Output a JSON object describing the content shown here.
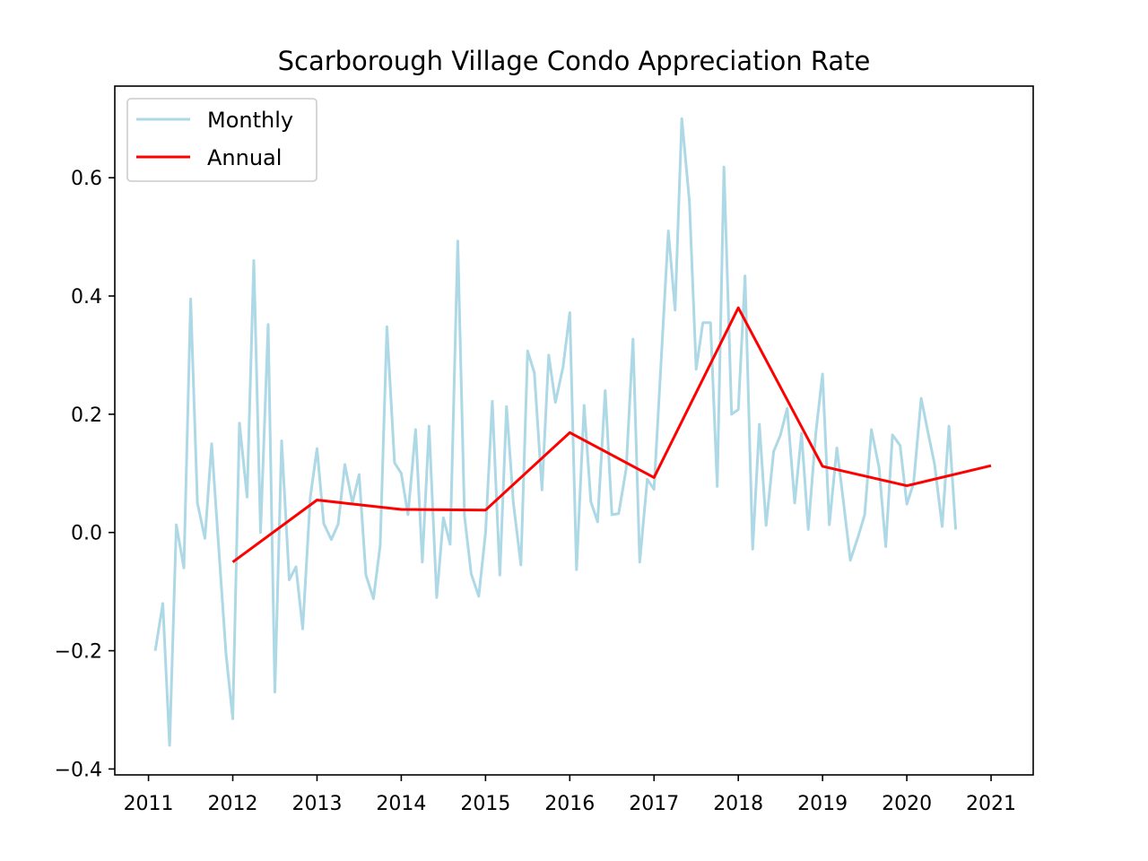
{
  "chart_data": {
    "type": "line",
    "title": "Scarborough Village Condo Appreciation Rate",
    "xlabel": "",
    "ylabel": "",
    "xlim": [
      2010.6,
      2021.5
    ],
    "ylim": [
      -0.41,
      0.755
    ],
    "x_ticks": [
      2011,
      2012,
      2013,
      2014,
      2015,
      2016,
      2017,
      2018,
      2019,
      2020,
      2021
    ],
    "x_tick_labels": [
      "2011",
      "2012",
      "2013",
      "2014",
      "2015",
      "2016",
      "2017",
      "2018",
      "2019",
      "2020",
      "2021"
    ],
    "y_ticks": [
      -0.4,
      -0.2,
      0.0,
      0.2,
      0.4,
      0.6
    ],
    "y_tick_labels": [
      "−0.4",
      "−0.2",
      "0.0",
      "0.2",
      "0.4",
      "0.6"
    ],
    "grid": false,
    "legend": {
      "position": "top-left",
      "entries": [
        "Monthly",
        "Annual"
      ]
    },
    "series": [
      {
        "name": "Monthly",
        "color": "#add8e6",
        "x": [
          2011.08,
          2011.17,
          2011.25,
          2011.33,
          2011.42,
          2011.5,
          2011.58,
          2011.67,
          2011.75,
          2011.83,
          2011.92,
          2012.0,
          2012.08,
          2012.17,
          2012.25,
          2012.33,
          2012.42,
          2012.5,
          2012.58,
          2012.67,
          2012.75,
          2012.83,
          2012.92,
          2013.0,
          2013.08,
          2013.17,
          2013.25,
          2013.33,
          2013.42,
          2013.5,
          2013.58,
          2013.67,
          2013.75,
          2013.83,
          2013.92,
          2014.0,
          2014.08,
          2014.17,
          2014.25,
          2014.33,
          2014.42,
          2014.5,
          2014.58,
          2014.67,
          2014.75,
          2014.83,
          2014.92,
          2015.0,
          2015.08,
          2015.17,
          2015.25,
          2015.33,
          2015.42,
          2015.5,
          2015.58,
          2015.67,
          2015.75,
          2015.83,
          2015.92,
          2016.0,
          2016.08,
          2016.17,
          2016.25,
          2016.33,
          2016.42,
          2016.5,
          2016.58,
          2016.67,
          2016.75,
          2016.83,
          2016.92,
          2017.0,
          2017.08,
          2017.17,
          2017.25,
          2017.33,
          2017.42,
          2017.5,
          2017.58,
          2017.67,
          2017.75,
          2017.83,
          2017.92,
          2018.0,
          2018.08,
          2018.17,
          2018.25,
          2018.33,
          2018.42,
          2018.5,
          2018.58,
          2018.67,
          2018.75,
          2018.83,
          2018.92,
          2019.0,
          2019.08,
          2019.17,
          2019.25,
          2019.33,
          2019.42,
          2019.5,
          2019.58,
          2019.67,
          2019.75,
          2019.83,
          2019.92,
          2020.0,
          2020.08,
          2020.17,
          2020.25,
          2020.33,
          2020.42,
          2020.5,
          2020.58
        ],
        "values": [
          -0.2,
          -0.12,
          -0.36,
          0.013,
          -0.06,
          0.395,
          0.05,
          -0.01,
          0.15,
          -0.02,
          -0.205,
          -0.315,
          0.185,
          0.06,
          0.46,
          0.0,
          0.352,
          -0.27,
          0.155,
          -0.08,
          -0.058,
          -0.163,
          0.06,
          0.142,
          0.015,
          -0.012,
          0.014,
          0.115,
          0.05,
          0.098,
          -0.072,
          -0.112,
          -0.022,
          0.348,
          0.118,
          0.1,
          0.03,
          0.174,
          -0.05,
          0.18,
          -0.11,
          0.025,
          -0.02,
          0.493,
          0.028,
          -0.07,
          -0.108,
          0.0,
          0.222,
          -0.072,
          0.213,
          0.05,
          -0.055,
          0.307,
          0.27,
          0.072,
          0.3,
          0.22,
          0.28,
          0.372,
          -0.063,
          0.215,
          0.052,
          0.018,
          0.24,
          0.03,
          0.032,
          0.108,
          0.327,
          -0.05,
          0.09,
          0.073,
          0.28,
          0.51,
          0.376,
          0.7,
          0.56,
          0.276,
          0.355,
          0.355,
          0.078,
          0.618,
          0.2,
          0.208,
          0.434,
          -0.028,
          0.183,
          0.012,
          0.137,
          0.165,
          0.21,
          0.05,
          0.168,
          0.005,
          0.168,
          0.268,
          0.013,
          0.143,
          0.05,
          -0.047,
          -0.008,
          0.03,
          0.174,
          0.11,
          -0.024,
          0.165,
          0.147,
          0.048,
          0.083,
          0.227,
          0.17,
          0.115,
          0.01,
          0.18,
          0.005
        ]
      },
      {
        "name": "Annual",
        "color": "#ff0000",
        "x": [
          2012,
          2013,
          2014,
          2015,
          2016,
          2017,
          2018,
          2019,
          2020,
          2021
        ],
        "values": [
          -0.05,
          0.055,
          0.039,
          0.038,
          0.169,
          0.093,
          0.38,
          0.112,
          0.079,
          0.113
        ]
      }
    ]
  }
}
